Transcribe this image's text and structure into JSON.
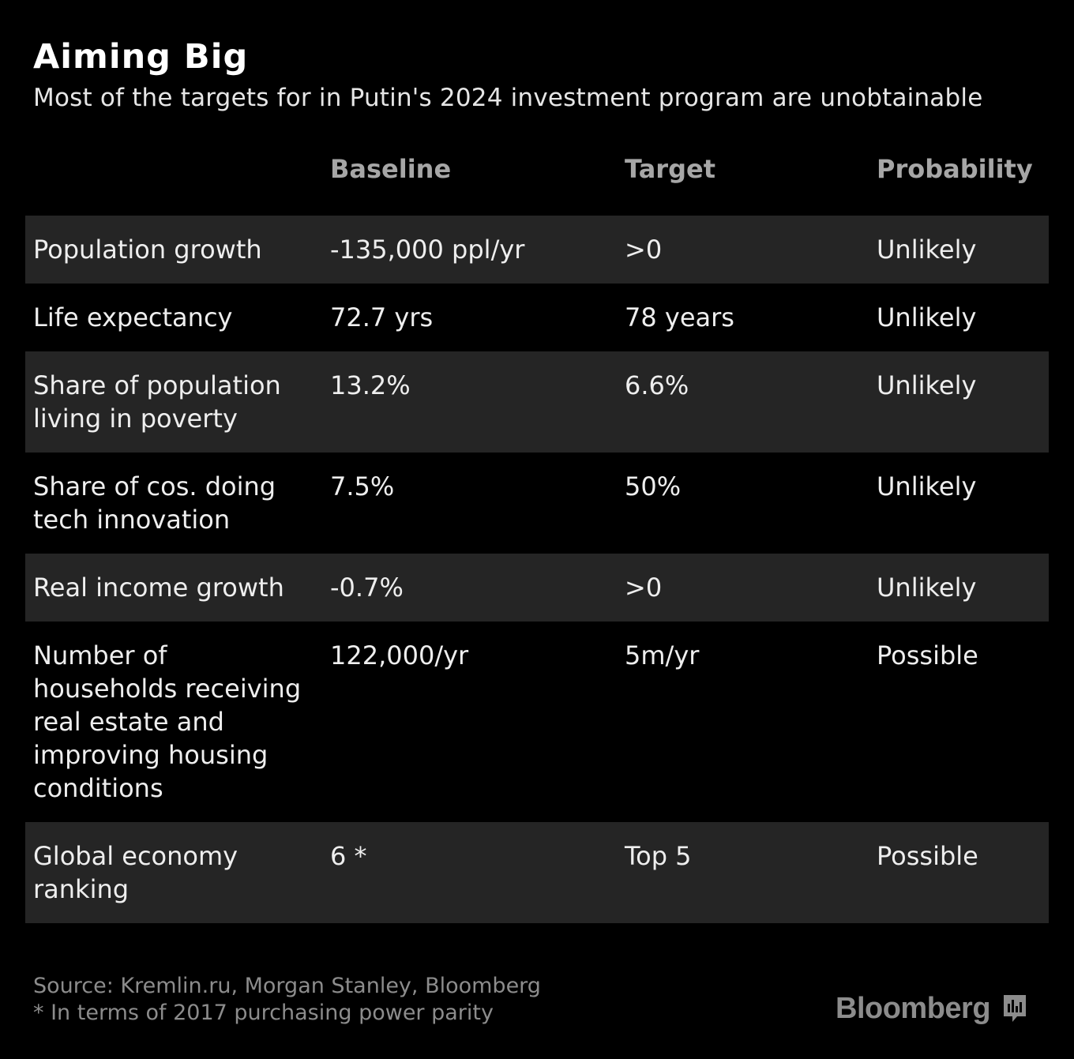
{
  "chart_data": {
    "type": "table",
    "title": "Aiming Big",
    "subtitle": "Most of the targets for in Putin's 2024 investment program are unobtainable",
    "columns": [
      "",
      "Baseline",
      "Target",
      "Probability"
    ],
    "rows": [
      {
        "label": "Population growth",
        "baseline": "-135,000 ppl/yr",
        "target": ">0",
        "probability": "Unlikely"
      },
      {
        "label": "Life expectancy",
        "baseline": "72.7 yrs",
        "target": "78 years",
        "probability": "Unlikely"
      },
      {
        "label": "Share of population living in poverty",
        "baseline": "13.2%",
        "target": "6.6%",
        "probability": "Unlikely"
      },
      {
        "label": "Share of cos. doing tech innovation",
        "baseline": "7.5%",
        "target": "50%",
        "probability": "Unlikely"
      },
      {
        "label": "Real income growth",
        "baseline": "-0.7%",
        "target": ">0",
        "probability": "Unlikely"
      },
      {
        "label": "Number of households receiving real estate and improving housing conditions",
        "baseline": "122,000/yr",
        "target": "5m/yr",
        "probability": "Possible"
      },
      {
        "label": "Global economy ranking",
        "baseline": "6 *",
        "target": "Top 5",
        "probability": "Possible"
      }
    ],
    "source": "Source: Kremlin.ru, Morgan Stanley, Bloomberg",
    "footnote": "* In terms of 2017 purchasing power parity"
  },
  "brand": {
    "name": "Bloomberg",
    "icon": "bloomberg-chart-icon"
  },
  "colors": {
    "background": "#000000",
    "row_shade": "#252525",
    "header_text": "#a6a6a6",
    "footer_text": "#8c8c8c"
  }
}
